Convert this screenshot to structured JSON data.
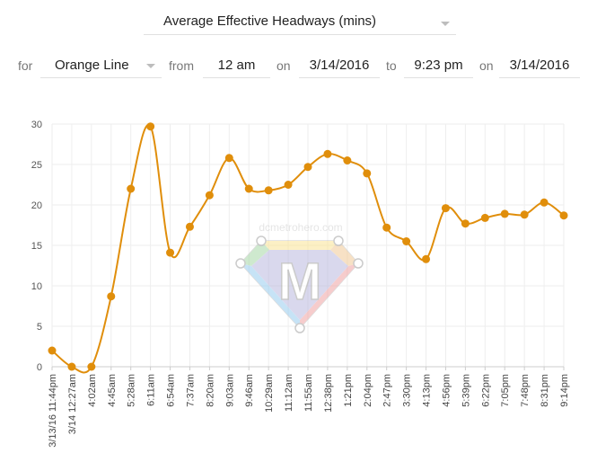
{
  "header": {
    "metric_label": "Average Effective Headways (mins)"
  },
  "filters": {
    "for_label": "for",
    "line_value": "Orange Line",
    "from_label": "from",
    "from_time": "12 am",
    "on_label_1": "on",
    "from_date": "3/14/2016",
    "to_label": "to",
    "to_time": "9:23 pm",
    "on_label_2": "on",
    "to_date": "3/14/2016"
  },
  "watermark": {
    "text": "dcmetrohero.com",
    "letter": "M"
  },
  "colors": {
    "series": "#E08E0B",
    "grid": "#eeeeee",
    "axis": "#cccccc"
  },
  "chart_data": {
    "type": "line",
    "smooth": true,
    "grid": true,
    "categories": [
      "3/13/16 11:44pm",
      "3/14 12:27am",
      "4:02am",
      "4:45am",
      "5:28am",
      "6:11am",
      "6:54am",
      "7:37am",
      "8:20am",
      "9:03am",
      "9:46am",
      "10:29am",
      "11:12am",
      "11:55am",
      "12:38pm",
      "1:21pm",
      "2:04pm",
      "2:47pm",
      "3:30pm",
      "4:13pm",
      "4:56pm",
      "5:39pm",
      "6:22pm",
      "7:05pm",
      "7:48pm",
      "8:31pm",
      "9:14pm"
    ],
    "values": [
      2,
      0,
      0,
      8.7,
      22,
      29.7,
      14.1,
      17.3,
      21.2,
      25.8,
      22,
      21.8,
      22.5,
      24.7,
      26.3,
      25.5,
      23.9,
      17.2,
      15.5,
      13.3,
      19.6,
      17.7,
      18.4,
      18.9,
      18.8,
      20.3,
      18.7
    ],
    "y_ticks": [
      "0",
      "5",
      "10",
      "15",
      "20",
      "25",
      "30"
    ],
    "ylim": [
      0,
      30
    ]
  }
}
